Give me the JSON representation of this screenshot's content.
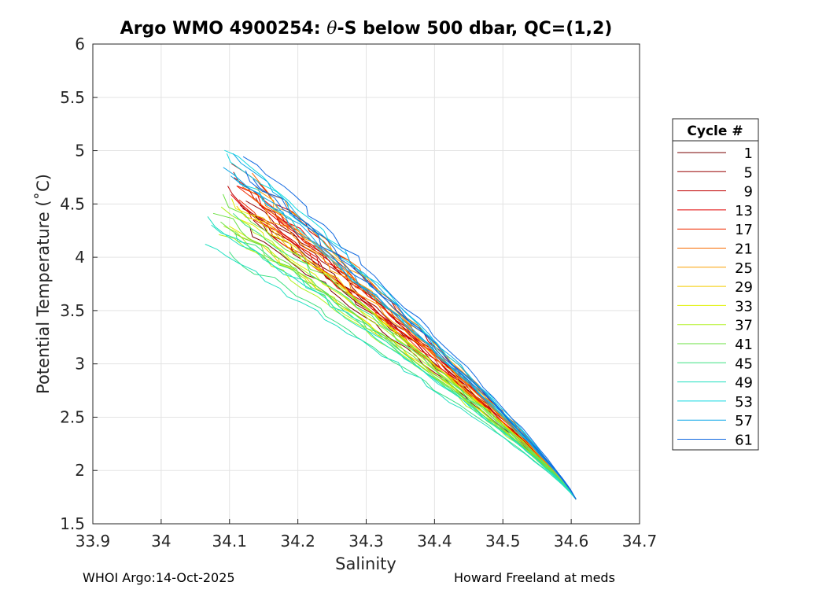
{
  "chart_data": {
    "type": "line",
    "title_prefix": "Argo WMO 4900254: ",
    "title_symbol": "θ",
    "title_suffix": "-S below 500 dbar,  QC=(1,2)",
    "xlabel": "Salinity",
    "ylabel": "Potential Temperature (˚C)",
    "xlim": [
      33.9,
      34.7
    ],
    "ylim": [
      1.5,
      6
    ],
    "xticks": [
      33.9,
      34,
      34.1,
      34.2,
      34.3,
      34.4,
      34.5,
      34.6,
      34.7
    ],
    "xtick_labels": [
      "33.9",
      "34",
      "34.1",
      "34.2",
      "34.3",
      "34.4",
      "34.5",
      "34.6",
      "34.7"
    ],
    "yticks": [
      1.5,
      2,
      2.5,
      3,
      3.5,
      4,
      4.5,
      5,
      5.5,
      6
    ],
    "ytick_labels": [
      "1.5",
      "2",
      "2.5",
      "3",
      "3.5",
      "4",
      "4.5",
      "5",
      "5.5",
      "6"
    ],
    "grid": true,
    "legend_title": "Cycle #",
    "legend_position": "outside-right",
    "legend": [
      {
        "label": "1",
        "color": "#7a0000"
      },
      {
        "label": "5",
        "color": "#980000"
      },
      {
        "label": "9",
        "color": "#c00000"
      },
      {
        "label": "13",
        "color": "#e00000"
      },
      {
        "label": "17",
        "color": "#f02a00"
      },
      {
        "label": "21",
        "color": "#f86a00"
      },
      {
        "label": "25",
        "color": "#fca000"
      },
      {
        "label": "29",
        "color": "#f4cc00"
      },
      {
        "label": "33",
        "color": "#e0f000"
      },
      {
        "label": "37",
        "color": "#b0f020"
      },
      {
        "label": "41",
        "color": "#6ae040"
      },
      {
        "label": "45",
        "color": "#3ce080"
      },
      {
        "label": "49",
        "color": "#20e0c0"
      },
      {
        "label": "53",
        "color": "#10d8e0"
      },
      {
        "label": "57",
        "color": "#10a8e8"
      },
      {
        "label": "61",
        "color": "#1068e0"
      }
    ],
    "profile_start_points": [
      [
        34.12,
        4.55
      ],
      [
        34.13,
        4.6
      ],
      [
        34.1,
        4.9
      ],
      [
        34.11,
        4.8
      ],
      [
        34.12,
        4.65
      ],
      [
        34.13,
        4.75
      ],
      [
        34.14,
        4.7
      ],
      [
        34.12,
        4.5
      ],
      [
        34.1,
        4.55
      ],
      [
        34.09,
        4.45
      ],
      [
        34.08,
        4.55
      ],
      [
        34.1,
        4.35
      ],
      [
        34.07,
        4.4
      ],
      [
        34.1,
        5.05
      ],
      [
        34.1,
        5.0
      ],
      [
        34.12,
        4.95
      ]
    ],
    "profile_end": [
      34.607,
      1.73
    ]
  },
  "footer": {
    "left": "WHOI Argo:14-Oct-2025",
    "right": "Howard Freeland at meds"
  }
}
